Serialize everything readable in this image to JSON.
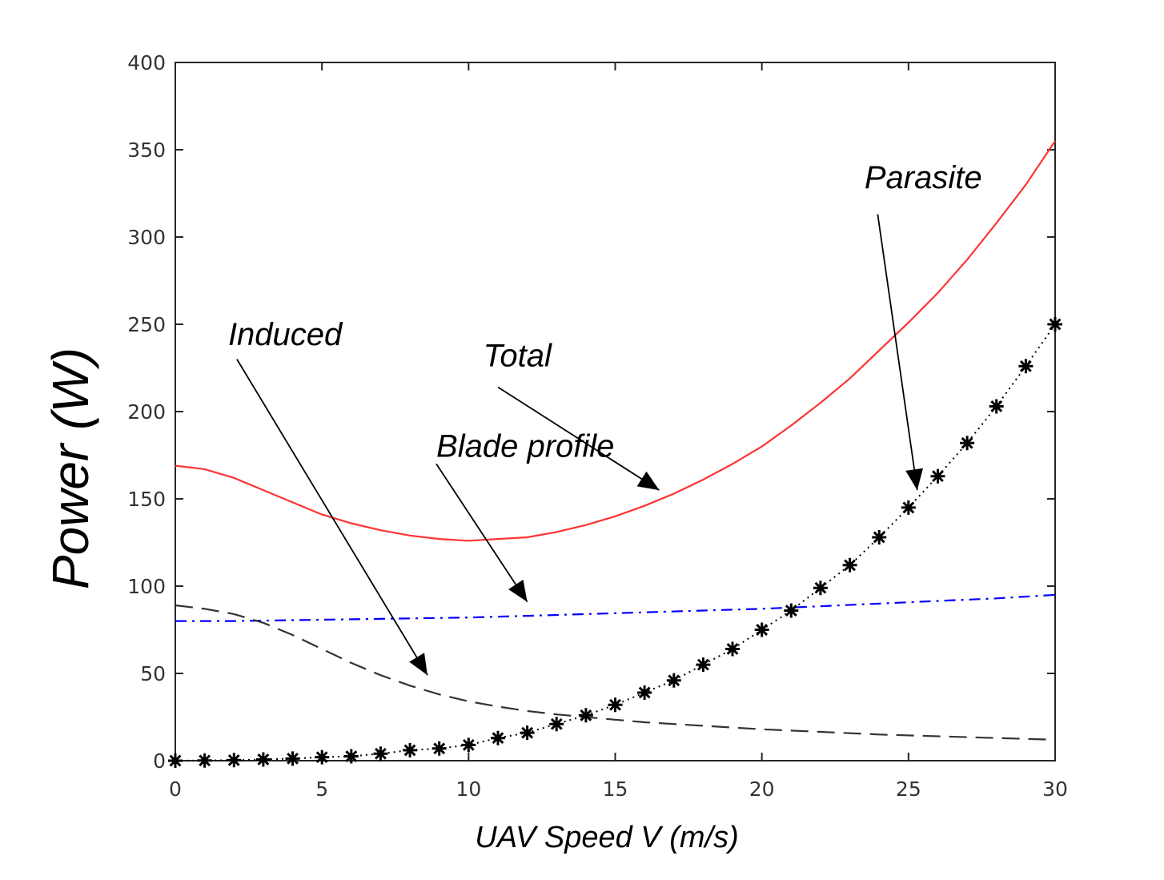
{
  "chart_data": {
    "type": "line",
    "xlabel": "UAV Speed V (m/s)",
    "ylabel": "Power (W)",
    "xlim": [
      0,
      30
    ],
    "ylim": [
      0,
      400
    ],
    "xticks": [
      0,
      5,
      10,
      15,
      20,
      25,
      30
    ],
    "yticks": [
      0,
      50,
      100,
      150,
      200,
      250,
      300,
      350,
      400
    ],
    "grid": false,
    "series": [
      {
        "name": "Total",
        "color": "#ff3333",
        "style": "solid",
        "x": [
          0,
          1,
          2,
          3,
          4,
          5,
          6,
          7,
          8,
          9,
          10,
          11,
          12,
          13,
          14,
          15,
          16,
          17,
          18,
          19,
          20,
          21,
          22,
          23,
          24,
          25,
          26,
          27,
          28,
          29,
          30
        ],
        "y": [
          169,
          167,
          162,
          155,
          148,
          141,
          136,
          132,
          129,
          127,
          126,
          127,
          128,
          131,
          135,
          140,
          146,
          153,
          161,
          170,
          180,
          192,
          205,
          219,
          235,
          251,
          268,
          287,
          308,
          330,
          355
        ]
      },
      {
        "name": "Blade profile",
        "color": "#0000ff",
        "style": "dashdot",
        "x": [
          0,
          2,
          4,
          6,
          8,
          10,
          12,
          14,
          16,
          18,
          20,
          22,
          24,
          26,
          28,
          30
        ],
        "y": [
          80,
          80,
          80.5,
          81,
          81.5,
          82,
          83,
          84,
          85,
          86,
          87,
          88.5,
          90,
          91.5,
          93,
          95
        ]
      },
      {
        "name": "Induced",
        "color": "#333333",
        "style": "dashed",
        "x": [
          0,
          1,
          2,
          3,
          4,
          5,
          6,
          7,
          8,
          9,
          10,
          11,
          12,
          13,
          14,
          15,
          16,
          18,
          20,
          22,
          24,
          26,
          28,
          30
        ],
        "y": [
          89,
          87,
          84,
          79,
          72,
          64,
          56,
          49,
          43,
          38,
          34,
          31,
          28.5,
          26.5,
          25,
          23.5,
          22,
          20,
          18,
          16.5,
          15,
          14,
          13,
          12
        ]
      },
      {
        "name": "Parasite",
        "color": "#000000",
        "style": "dotted-star",
        "x": [
          0,
          1,
          2,
          3,
          4,
          5,
          6,
          7,
          8,
          9,
          10,
          11,
          12,
          13,
          14,
          15,
          16,
          17,
          18,
          19,
          20,
          21,
          22,
          23,
          24,
          25,
          26,
          27,
          28,
          29,
          30
        ],
        "y": [
          0,
          0.1,
          0.3,
          0.7,
          1.2,
          2,
          2.5,
          4,
          6,
          7,
          9,
          13,
          16,
          21,
          26,
          32,
          39,
          46,
          55,
          64,
          75,
          86,
          99,
          112,
          128,
          145,
          163,
          182,
          203,
          226,
          250
        ]
      }
    ],
    "annotations": [
      {
        "text": "Parasite",
        "label_x": 23.5,
        "label_y": 328,
        "arrow_from": [
          23.95,
          313
        ],
        "arrow_to": [
          25.3,
          155
        ]
      },
      {
        "text": "Induced",
        "label_x": 1.8,
        "label_y": 238,
        "arrow_from": [
          2.1,
          230
        ],
        "arrow_to": [
          8.6,
          49
        ]
      },
      {
        "text": "Total",
        "label_x": 10.5,
        "label_y": 226,
        "arrow_from": [
          11.0,
          214
        ],
        "arrow_to": [
          16.5,
          155
        ]
      },
      {
        "text": "Blade profile",
        "label_x": 8.9,
        "label_y": 174,
        "arrow_from": [
          8.9,
          170
        ],
        "arrow_to": [
          12.0,
          91
        ]
      }
    ]
  }
}
